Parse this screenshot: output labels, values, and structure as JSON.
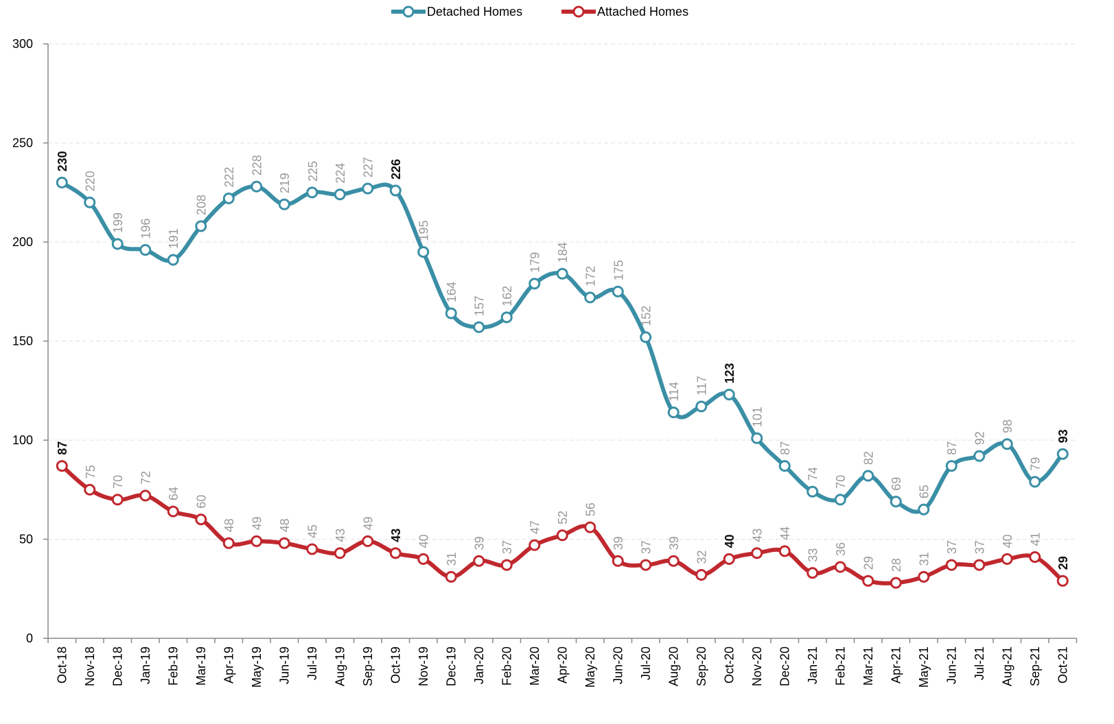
{
  "chart_data": {
    "type": "line",
    "categories": [
      "Oct-18",
      "Nov-18",
      "Dec-18",
      "Jan-19",
      "Feb-19",
      "Mar-19",
      "Apr-19",
      "May-19",
      "Jun-19",
      "Jul-19",
      "Aug-19",
      "Sep-19",
      "Oct-19",
      "Nov-19",
      "Dec-19",
      "Jan-20",
      "Feb-20",
      "Mar-20",
      "Apr-20",
      "May-20",
      "Jun-20",
      "Jul-20",
      "Aug-20",
      "Sep-20",
      "Oct-20",
      "Nov-20",
      "Dec-20",
      "Jan-21",
      "Feb-21",
      "Mar-21",
      "Apr-21",
      "May-21",
      "Jun-21",
      "Jul-21",
      "Aug-21",
      "Sep-21",
      "Oct-21"
    ],
    "series": [
      {
        "name": "Detached Homes",
        "color": "#3a8fa6",
        "values": [
          230,
          220,
          199,
          196,
          191,
          208,
          222,
          228,
          219,
          225,
          224,
          227,
          226,
          195,
          164,
          157,
          162,
          179,
          184,
          172,
          175,
          152,
          114,
          117,
          123,
          101,
          87,
          74,
          70,
          82,
          69,
          65,
          87,
          92,
          98,
          79,
          93
        ]
      },
      {
        "name": "Attached Homes",
        "color": "#c0282e",
        "values": [
          87,
          75,
          70,
          72,
          64,
          60,
          48,
          49,
          48,
          45,
          43,
          49,
          43,
          40,
          31,
          39,
          37,
          47,
          52,
          56,
          39,
          37,
          39,
          32,
          40,
          43,
          44,
          33,
          36,
          29,
          28,
          31,
          37,
          37,
          40,
          41,
          29
        ]
      }
    ],
    "ylim": [
      0,
      300
    ],
    "yticks": [
      0,
      50,
      100,
      150,
      200,
      250,
      300
    ],
    "grid": true,
    "legend": "top"
  }
}
